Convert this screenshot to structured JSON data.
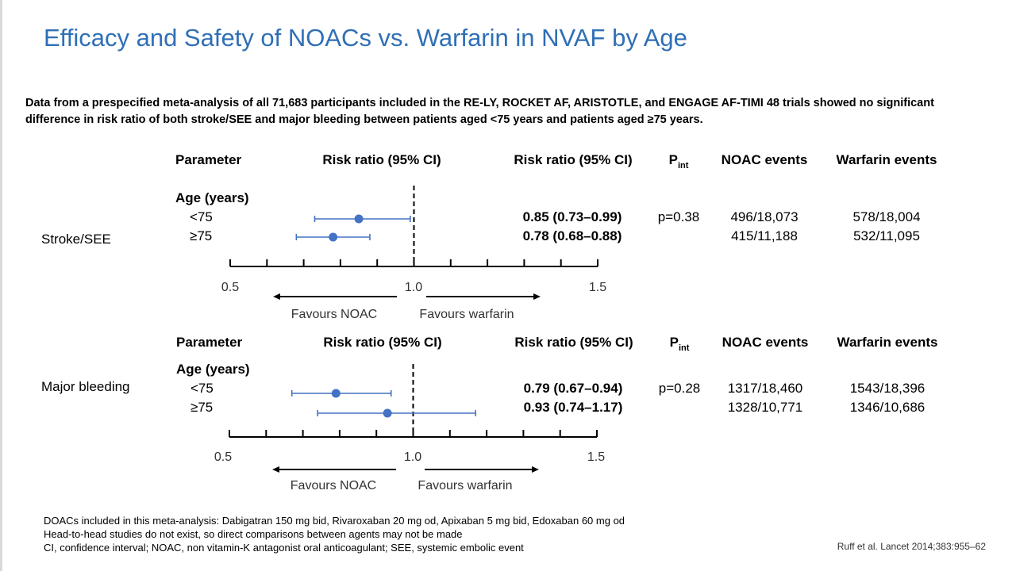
{
  "title": "Efficacy and Safety of NOACs vs. Warfarin in NVAF by Age",
  "intro": {
    "line1": "Data from a prespecified meta-analysis of all 71,683 participants included in the RE-LY, ROCKET AF, ARISTOTLE, and ENGAGE AF-TIMI 48 trials showed no significant",
    "line2": "difference in risk ratio of both stroke/SEE and major bleeding between patients aged <75 years and patients aged ≥75 years."
  },
  "headers": {
    "parameter": "Parameter",
    "risk_ratio_plot": "Risk ratio (95% CI)",
    "risk_ratio_text": "Risk ratio (95% CI)",
    "p_main": "P",
    "p_sub": "int",
    "noac_events": "NOAC events",
    "warfarin_events": "Warfarin events"
  },
  "age_label": "Age (years)",
  "favours": {
    "noac": "Favours NOAC",
    "warfarin": "Favours warfarin"
  },
  "axis": {
    "min": 0.5,
    "max": 1.5,
    "ticks": [
      "0.5",
      "1.0",
      "1.5"
    ]
  },
  "panels": [
    {
      "outcome": "Stroke/SEE",
      "p_int": "p=0.38",
      "rows": [
        {
          "age": "<75",
          "rr_text": "0.85 (0.73–0.99)",
          "noac": "496/18,073",
          "warfarin": "578/18,004"
        },
        {
          "age": "≥75",
          "rr_text": "0.78 (0.68–0.88)",
          "noac": "415/11,188",
          "warfarin": "532/11,095"
        }
      ]
    },
    {
      "outcome": "Major bleeding",
      "p_int": "p=0.28",
      "rows": [
        {
          "age": "<75",
          "rr_text": "0.79 (0.67–0.94)",
          "noac": "1317/18,460",
          "warfarin": "1543/18,396"
        },
        {
          "age": "≥75",
          "rr_text": "0.93 (0.74–1.17)",
          "noac": "1328/10,771",
          "warfarin": "1346/10,686"
        }
      ]
    }
  ],
  "chart_data": [
    {
      "type": "scatter",
      "title": "Stroke/SEE",
      "xlabel": "Risk ratio (95% CI)",
      "xlim": [
        0.5,
        1.5
      ],
      "reference_line": 1.0,
      "categories": [
        "<75",
        "≥75"
      ],
      "estimates": [
        0.85,
        0.78
      ],
      "ci_lower": [
        0.73,
        0.68
      ],
      "ci_upper": [
        0.99,
        0.88
      ]
    },
    {
      "type": "scatter",
      "title": "Major bleeding",
      "xlabel": "Risk ratio (95% CI)",
      "xlim": [
        0.5,
        1.5
      ],
      "reference_line": 1.0,
      "categories": [
        "<75",
        "≥75"
      ],
      "estimates": [
        0.79,
        0.93
      ],
      "ci_lower": [
        0.67,
        0.74
      ],
      "ci_upper": [
        0.94,
        1.17
      ]
    }
  ],
  "colors": {
    "title": "#2f6fb6",
    "marker": "#4472c4"
  },
  "footnotes": {
    "line1": "DOACs included in this meta-analysis: Dabigatran 150 mg  bid, Rivaroxaban 20 mg od, Apixaban 5 mg bid, Edoxaban 60 mg od",
    "line2": "Head-to-head studies do not exist, so direct comparisons between agents may not be made",
    "line3": "CI, confidence interval;  NOAC, non vitamin-K antagonist oral anticoagulant; SEE, systemic embolic event"
  },
  "reference": "Ruff et al. Lancet 2014;383:955–62"
}
